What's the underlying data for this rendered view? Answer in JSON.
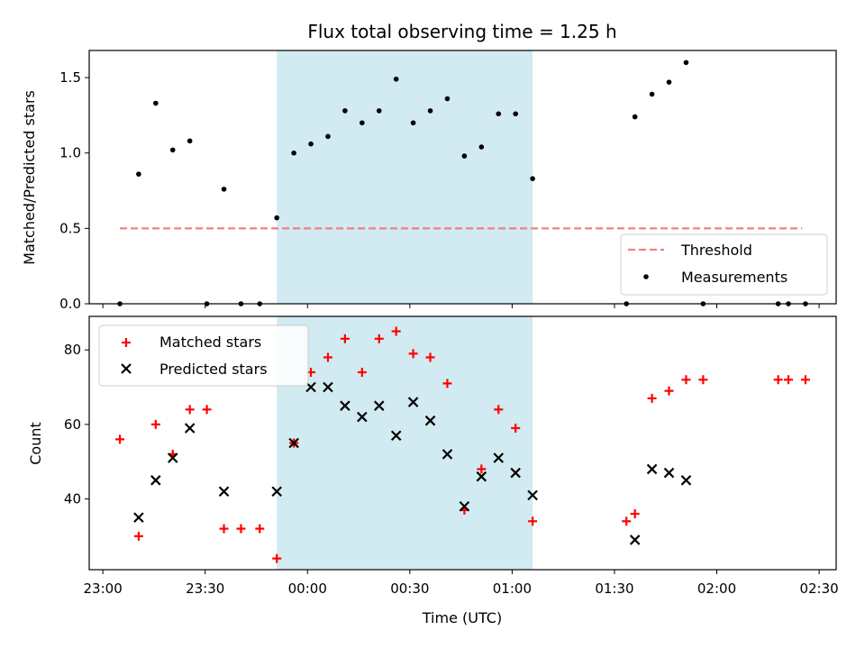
{
  "chart_data": {
    "title": "Flux total observing time = 1.25 h",
    "xlabel": "Time (UTC)",
    "x_ticks": [
      "23:00",
      "23:30",
      "00:00",
      "00:30",
      "01:00",
      "01:30",
      "02:00",
      "02:30"
    ],
    "x_tick_minutes": [
      -60,
      -30,
      0,
      30,
      60,
      90,
      120,
      150
    ],
    "x_range_minutes": [
      -64,
      155
    ],
    "shaded_interval_minutes": [
      -9,
      66
    ],
    "shade_color": "#add8e6",
    "top": {
      "type": "scatter",
      "ylabel": "Matched/Predicted stars",
      "ylim": [
        0.0,
        1.68
      ],
      "yticks": [
        0.0,
        0.5,
        1.0,
        1.5
      ],
      "ytick_labels": [
        "0.0",
        "0.5",
        "1.0",
        "1.5"
      ],
      "legend_position": "lower-right",
      "threshold": {
        "name": "Threshold",
        "value": 0.5,
        "x_start": -55,
        "x_end": 145,
        "color": "#f08080"
      },
      "measurements": {
        "name": "Measurements",
        "color": "#000000",
        "points": [
          [
            -55,
            0.0
          ],
          [
            -49.5,
            0.86
          ],
          [
            -44.5,
            1.33
          ],
          [
            -39.5,
            1.02
          ],
          [
            -34.5,
            1.08
          ],
          [
            -29.5,
            0.0
          ],
          [
            -24.5,
            0.76
          ],
          [
            -19.5,
            0.0
          ],
          [
            -14,
            0.0
          ],
          [
            -9,
            0.57
          ],
          [
            -4,
            1.0
          ],
          [
            1,
            1.06
          ],
          [
            6,
            1.11
          ],
          [
            11,
            1.28
          ],
          [
            16,
            1.2
          ],
          [
            21,
            1.28
          ],
          [
            26,
            1.49
          ],
          [
            31,
            1.2
          ],
          [
            36,
            1.28
          ],
          [
            41,
            1.36
          ],
          [
            46,
            0.98
          ],
          [
            51,
            1.04
          ],
          [
            56,
            1.26
          ],
          [
            61,
            1.26
          ],
          [
            66,
            0.83
          ],
          [
            93.5,
            0.0
          ],
          [
            96,
            1.24
          ],
          [
            101,
            1.39
          ],
          [
            106,
            1.47
          ],
          [
            111,
            1.6
          ],
          [
            116,
            0.0
          ],
          [
            138,
            0.0
          ],
          [
            141,
            0.0
          ],
          [
            146,
            0.0
          ]
        ]
      }
    },
    "bottom": {
      "type": "scatter",
      "ylabel": "Count",
      "ylim": [
        21,
        89
      ],
      "yticks": [
        40,
        60,
        80
      ],
      "ytick_labels": [
        "40",
        "60",
        "80"
      ],
      "legend_position": "upper-left",
      "series": [
        {
          "name": "Matched stars",
          "marker": "plus",
          "color": "#ff0000",
          "points": [
            [
              -55,
              56
            ],
            [
              -49.5,
              30
            ],
            [
              -44.5,
              60
            ],
            [
              -39.5,
              52
            ],
            [
              -34.5,
              64
            ],
            [
              -29.5,
              64
            ],
            [
              -24.5,
              32
            ],
            [
              -19.5,
              32
            ],
            [
              -14,
              32
            ],
            [
              -9,
              24
            ],
            [
              -4,
              55
            ],
            [
              1,
              74
            ],
            [
              6,
              78
            ],
            [
              11,
              83
            ],
            [
              16,
              74
            ],
            [
              21,
              83
            ],
            [
              26,
              85
            ],
            [
              31,
              79
            ],
            [
              36,
              78
            ],
            [
              41,
              71
            ],
            [
              46,
              37
            ],
            [
              51,
              48
            ],
            [
              56,
              64
            ],
            [
              61,
              59
            ],
            [
              66,
              34
            ],
            [
              93.5,
              34
            ],
            [
              96,
              36
            ],
            [
              101,
              67
            ],
            [
              106,
              69
            ],
            [
              111,
              72
            ],
            [
              116,
              72
            ],
            [
              138,
              72
            ],
            [
              141,
              72
            ],
            [
              146,
              72
            ]
          ]
        },
        {
          "name": "Predicted stars",
          "marker": "x",
          "color": "#000000",
          "points": [
            [
              -49.5,
              35
            ],
            [
              -44.5,
              45
            ],
            [
              -39.5,
              51
            ],
            [
              -34.5,
              59
            ],
            [
              -24.5,
              42
            ],
            [
              -9,
              42
            ],
            [
              -4,
              55
            ],
            [
              1,
              70
            ],
            [
              6,
              70
            ],
            [
              11,
              65
            ],
            [
              16,
              62
            ],
            [
              21,
              65
            ],
            [
              26,
              57
            ],
            [
              31,
              66
            ],
            [
              36,
              61
            ],
            [
              41,
              52
            ],
            [
              46,
              38
            ],
            [
              51,
              46
            ],
            [
              56,
              51
            ],
            [
              61,
              47
            ],
            [
              66,
              41
            ],
            [
              96,
              29
            ],
            [
              101,
              48
            ],
            [
              106,
              47
            ],
            [
              111,
              45
            ]
          ]
        }
      ]
    }
  }
}
